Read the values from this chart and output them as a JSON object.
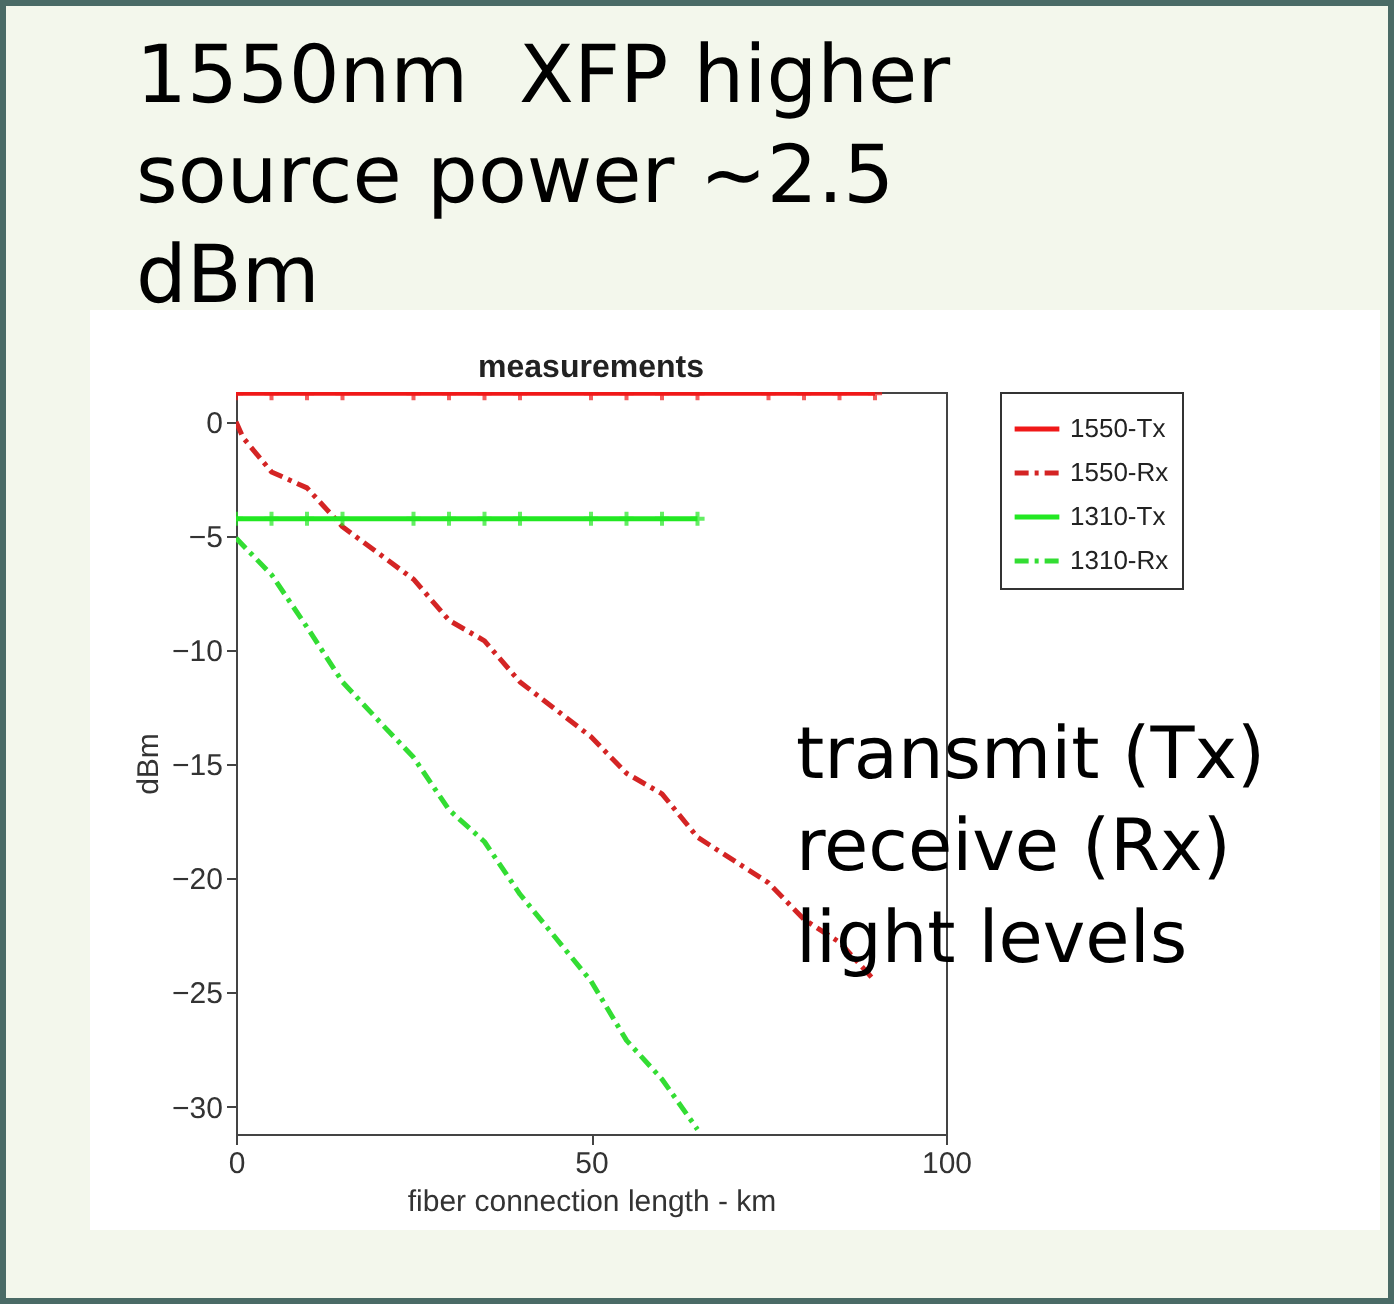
{
  "chart_data": {
    "type": "line",
    "title": "1550nm  XFP higher source power ~2.5 dBm",
    "subtitle": "measurements",
    "xlabel": "fiber connection length - km",
    "ylabel": "dBm",
    "annotations": [
      "transmit (Tx) receive (Rx) light levels"
    ],
    "xlim": [
      0,
      100
    ],
    "xticks": [
      0,
      50,
      100
    ],
    "ylim": [
      -31.2,
      1.3
    ],
    "yticks": [
      0,
      -5,
      -10,
      -15,
      -20,
      -25,
      -30
    ],
    "legend": "top right",
    "series": [
      {
        "name": "1550-Tx",
        "color": "#f01818",
        "marker": "cross",
        "line_style": "solid",
        "x": [
          0,
          5,
          10,
          15,
          25,
          30,
          35,
          40,
          50,
          55,
          60,
          65,
          75,
          80,
          85,
          90
        ],
        "values": [
          1.25,
          1.25,
          1.25,
          1.25,
          1.25,
          1.25,
          1.25,
          1.25,
          1.25,
          1.25,
          1.25,
          1.25,
          1.25,
          1.25,
          1.25,
          1.25
        ]
      },
      {
        "name": "1550-Rx",
        "color": "#d42424",
        "marker": "none",
        "line_style": "dashed",
        "x": [
          0,
          1,
          5,
          10,
          15,
          25,
          30,
          35,
          40,
          50,
          55,
          60,
          65,
          75,
          80,
          85,
          90
        ],
        "values": [
          0,
          -0.7,
          -2.2,
          -2.9,
          -4.6,
          -6.9,
          -8.7,
          -9.6,
          -11.4,
          -13.8,
          -15.4,
          -16.3,
          -18.2,
          -20.2,
          -21.8,
          -22.8,
          -24.5
        ]
      },
      {
        "name": "1310-Tx",
        "color": "#22e822",
        "marker": "cross",
        "line_style": "solid",
        "x": [
          0,
          5,
          10,
          15,
          25,
          30,
          35,
          40,
          50,
          55,
          60,
          65
        ],
        "values": [
          -4.25,
          -4.25,
          -4.25,
          -4.25,
          -4.25,
          -4.25,
          -4.25,
          -4.25,
          -4.25,
          -4.25,
          -4.25,
          -4.25
        ]
      },
      {
        "name": "1310-Rx",
        "color": "#33dd33",
        "marker": "none",
        "line_style": "dashed",
        "x": [
          0,
          5,
          10,
          15,
          21,
          25,
          30,
          35,
          40,
          50,
          55,
          60,
          65
        ],
        "values": [
          -5.1,
          -6.7,
          -9.0,
          -11.4,
          -13.4,
          -14.7,
          -17.0,
          -18.4,
          -20.7,
          -24.5,
          -27.1,
          -28.8,
          -31.0
        ]
      }
    ]
  }
}
